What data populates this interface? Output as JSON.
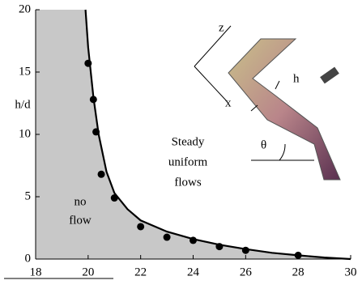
{
  "chart_data": {
    "type": "scatter",
    "y_label": "h/d",
    "xlim": [
      18,
      30
    ],
    "xticks": [
      18,
      20,
      22,
      24,
      26,
      28,
      30
    ],
    "ylim": [
      0,
      20
    ],
    "yticks": [
      0,
      5,
      10,
      15,
      20
    ],
    "series": [
      {
        "color": "#000000",
        "x": [
          20,
          20.2,
          20.3,
          20.5,
          21,
          22,
          23,
          24,
          25,
          26,
          28
        ],
        "values": [
          15.7,
          12.8,
          10.2,
          6.8,
          4.9,
          2.6,
          1.75,
          1.5,
          1.0,
          0.7,
          0.3
        ]
      }
    ],
    "curve": {
      "color": "#000000",
      "fill": "#c8c8c8",
      "x": [
        19.9,
        20,
        20.2,
        20.4,
        20.7,
        21,
        21.5,
        22,
        23,
        24,
        25,
        26,
        27,
        28,
        29,
        30
      ],
      "values": [
        20,
        17,
        13,
        10,
        7,
        5.3,
        4,
        3.1,
        2.2,
        1.6,
        1.15,
        0.8,
        0.5,
        0.3,
        0.12,
        0
      ]
    },
    "annotations": [
      "Steady",
      "uniform",
      "flows",
      "no",
      "flow"
    ],
    "inset_labels": [
      "z",
      "x",
      "h",
      "θ"
    ]
  }
}
